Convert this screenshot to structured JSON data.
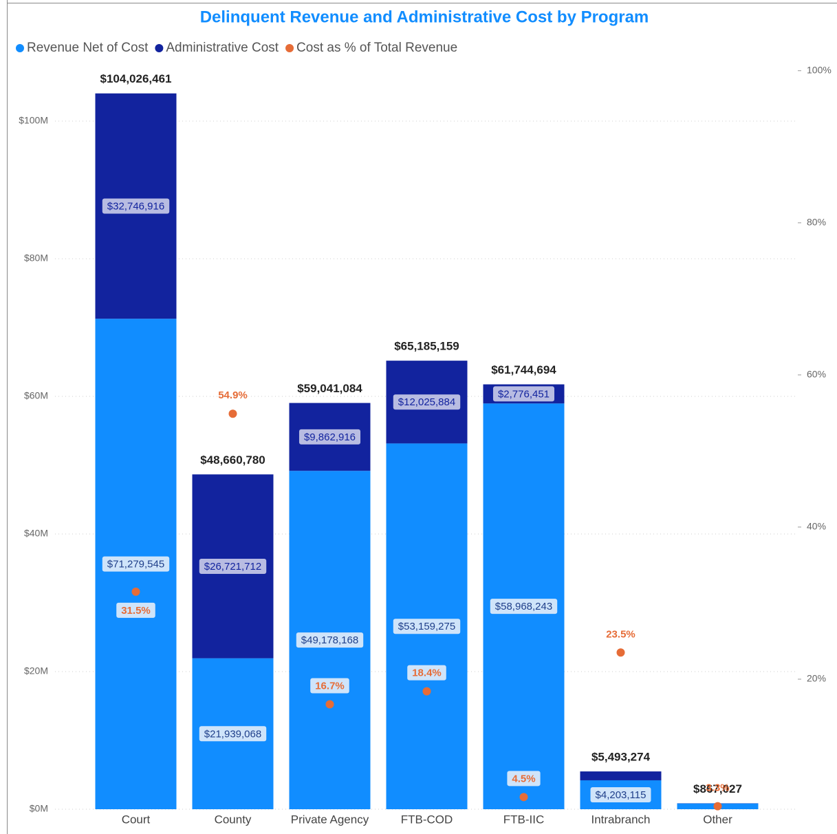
{
  "chart_data": {
    "type": "bar",
    "title": "Delinquent Revenue and Administrative Cost by Program",
    "categories": [
      "Court",
      "County",
      "Private Agency",
      "FTB-COD",
      "FTB-IIC",
      "Intrabranch",
      "Other"
    ],
    "series": [
      {
        "name": "Revenue Net of Cost",
        "color": "#118DFF",
        "values": [
          71279545,
          21939068,
          49178168,
          53159275,
          58968243,
          4203115,
          838415
        ],
        "value_labels": [
          "$71,279,545",
          "$21,939,068",
          "$49,178,168",
          "$53,159,275",
          "$58,968,243",
          "$4,203,115",
          null
        ]
      },
      {
        "name": "Administrative Cost",
        "color": "#12239E",
        "values": [
          32746916,
          26721712,
          9862916,
          12025884,
          2776451,
          1290159,
          28612
        ],
        "value_labels": [
          "$32,746,916",
          "$26,721,712",
          "$9,862,916",
          "$12,025,884",
          "$2,776,451",
          null,
          null
        ]
      },
      {
        "name": "Cost as % of Total Revenue",
        "color": "#E66C37",
        "axis": "y2",
        "values": [
          31.5,
          54.9,
          16.7,
          18.4,
          4.5,
          23.5,
          3.3
        ],
        "value_labels": [
          "31.5%",
          "54.9%",
          "16.7%",
          "18.4%",
          "4.5%",
          "23.5%",
          "3.3%"
        ]
      }
    ],
    "totals": [
      104026461,
      48660780,
      59041084,
      65185159,
      61744694,
      5493274,
      867027
    ],
    "total_labels": [
      "$104,026,461",
      "$48,660,780",
      "$59,041,084",
      "$65,185,159",
      "$61,744,694",
      "$5,493,274",
      "$867,027"
    ],
    "ylim": [
      0,
      108100000
    ],
    "yticks": [
      {
        "value": 0,
        "label": "$0M"
      },
      {
        "value": 20000000,
        "label": "$20M"
      },
      {
        "value": 40000000,
        "label": "$40M"
      },
      {
        "value": 60000000,
        "label": "$60M"
      },
      {
        "value": 80000000,
        "label": "$80M"
      },
      {
        "value": 100000000,
        "label": "$100M"
      }
    ],
    "y2lim": [
      2.9,
      100.7
    ],
    "y2ticks": [
      {
        "value": 20,
        "label": "20%"
      },
      {
        "value": 40,
        "label": "40%"
      },
      {
        "value": 60,
        "label": "60%"
      },
      {
        "value": 80,
        "label": "80%"
      },
      {
        "value": 100,
        "label": "100%"
      }
    ],
    "grid": true,
    "legend": "top-left"
  }
}
